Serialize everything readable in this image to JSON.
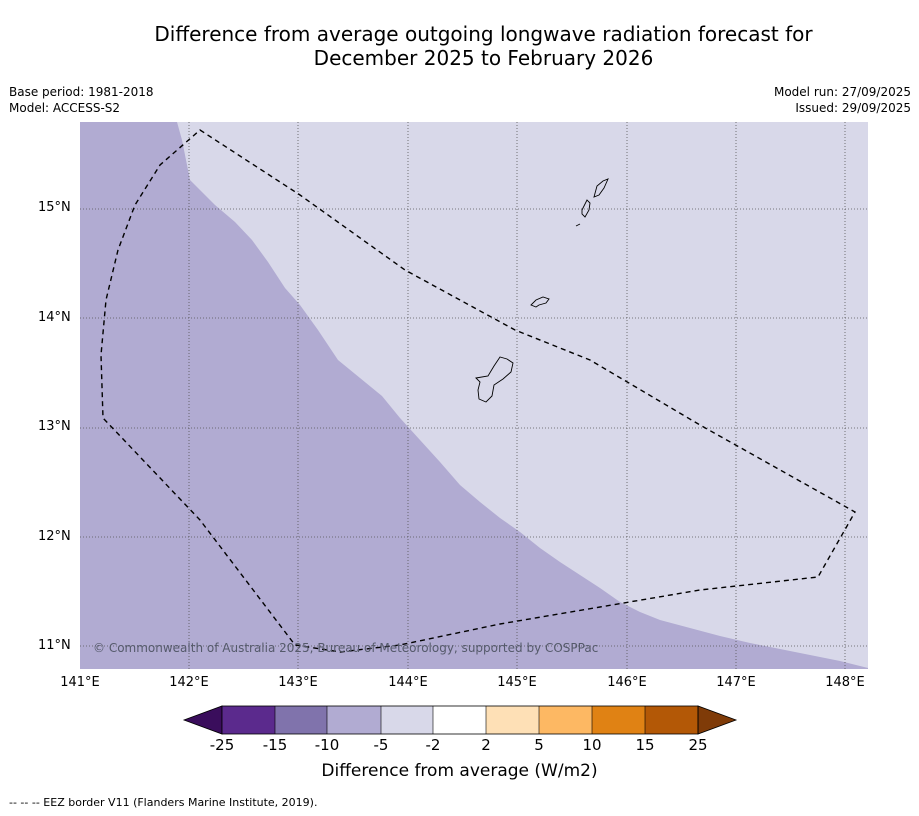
{
  "title": {
    "line1": "Difference from average outgoing longwave radiation forecast for",
    "line2": "December 2025 to February 2026"
  },
  "meta_left": {
    "base_period": "Base period: 1981-2018",
    "model": "Model: ACCESS-S2"
  },
  "meta_right": {
    "model_run": "Model run: 27/09/2025",
    "issued": "Issued: 29/09/2025"
  },
  "map": {
    "lat_labels": [
      "15°N",
      "14°N",
      "13°N",
      "12°N",
      "11°N"
    ],
    "lon_labels": [
      "141°E",
      "142°E",
      "143°E",
      "144°E",
      "145°E",
      "146°E",
      "147°E",
      "148°E"
    ],
    "extent": {
      "lon_min": 141.0,
      "lon_max": 148.2,
      "lat_min": 10.8,
      "lat_max": 15.8
    },
    "region_-10_to_-5_color": "#b1abd2",
    "region_-5_to_-2_color": "#d8d8e9",
    "copyright": "© Commonwealth of Australia 2025, Bureau of Meteorology, supported by COSPPac"
  },
  "colorbar": {
    "tick_labels": [
      "-25",
      "-15",
      "-10",
      "-5",
      "-2",
      "2",
      "5",
      "10",
      "15",
      "25"
    ],
    "colors": [
      "#3a0d5c",
      "#5b2a8d",
      "#8073ac",
      "#b1abd2",
      "#d8d8e9",
      "#ffffff",
      "#fee0b6",
      "#fdb863",
      "#e08214",
      "#b35806",
      "#7f3b08"
    ],
    "label": "Difference from average (W/m2)"
  },
  "footer": "--  --  -- EEZ border V11 (Flanders Marine Institute, 2019)."
}
